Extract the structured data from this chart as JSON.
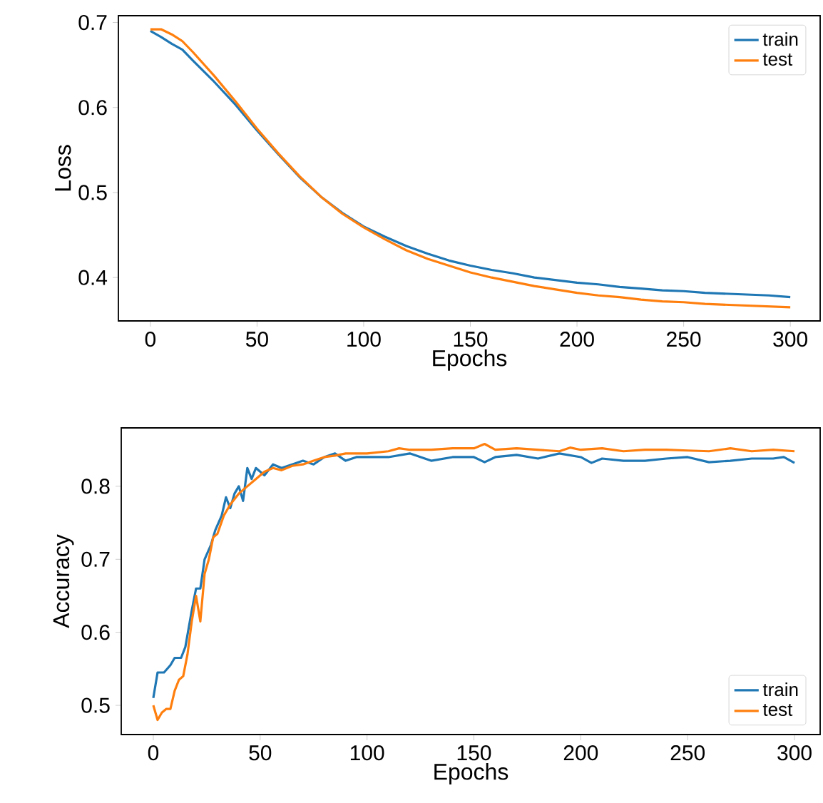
{
  "chart_data": [
    {
      "type": "line",
      "xlabel": "Epochs",
      "ylabel": "Loss",
      "xlim": [
        -15,
        314
      ],
      "ylim": [
        0.349,
        0.708
      ],
      "xticks": [
        0,
        50,
        100,
        150,
        200,
        250,
        300
      ],
      "yticks": [
        0.4,
        0.5,
        0.6,
        0.7
      ],
      "legend": "top right",
      "series": [
        {
          "name": "train",
          "color": "#1f77b4",
          "x": [
            0,
            5,
            10,
            15,
            20,
            30,
            40,
            50,
            60,
            70,
            80,
            90,
            100,
            110,
            120,
            130,
            140,
            150,
            160,
            170,
            180,
            190,
            200,
            210,
            220,
            230,
            240,
            250,
            260,
            270,
            280,
            290,
            300
          ],
          "values": [
            0.69,
            0.683,
            0.675,
            0.668,
            0.655,
            0.63,
            0.603,
            0.573,
            0.545,
            0.518,
            0.495,
            0.476,
            0.46,
            0.448,
            0.437,
            0.428,
            0.42,
            0.414,
            0.409,
            0.405,
            0.4,
            0.397,
            0.394,
            0.392,
            0.389,
            0.387,
            0.385,
            0.384,
            0.382,
            0.381,
            0.38,
            0.379,
            0.377
          ]
        },
        {
          "name": "test",
          "color": "#ff7f0e",
          "x": [
            0,
            5,
            10,
            15,
            20,
            30,
            40,
            50,
            60,
            70,
            80,
            90,
            100,
            110,
            120,
            130,
            140,
            150,
            160,
            170,
            180,
            190,
            200,
            210,
            220,
            230,
            240,
            250,
            260,
            270,
            280,
            290,
            300
          ],
          "values": [
            0.692,
            0.692,
            0.686,
            0.678,
            0.665,
            0.637,
            0.607,
            0.575,
            0.546,
            0.519,
            0.495,
            0.475,
            0.459,
            0.445,
            0.432,
            0.422,
            0.414,
            0.406,
            0.4,
            0.395,
            0.39,
            0.386,
            0.382,
            0.379,
            0.377,
            0.374,
            0.372,
            0.371,
            0.369,
            0.368,
            0.367,
            0.366,
            0.365
          ]
        }
      ]
    },
    {
      "type": "line",
      "xlabel": "Epochs",
      "ylabel": "Accuracy",
      "xlim": [
        -15,
        312
      ],
      "ylim": [
        0.46,
        0.88
      ],
      "xticks": [
        0,
        50,
        100,
        150,
        200,
        250,
        300
      ],
      "yticks": [
        0.5,
        0.6,
        0.7,
        0.8
      ],
      "legend": "bottom right",
      "series": [
        {
          "name": "train",
          "color": "#1f77b4",
          "x": [
            0,
            2,
            5,
            8,
            10,
            13,
            15,
            18,
            20,
            22,
            24,
            27,
            29,
            32,
            34,
            36,
            38,
            40,
            42,
            44,
            46,
            48,
            52,
            56,
            60,
            65,
            70,
            75,
            80,
            85,
            90,
            95,
            100,
            110,
            120,
            130,
            140,
            150,
            155,
            160,
            170,
            180,
            190,
            200,
            205,
            210,
            220,
            230,
            240,
            250,
            260,
            270,
            280,
            290,
            295,
            300
          ],
          "values": [
            0.51,
            0.545,
            0.545,
            0.555,
            0.565,
            0.565,
            0.58,
            0.63,
            0.66,
            0.66,
            0.7,
            0.72,
            0.74,
            0.76,
            0.785,
            0.77,
            0.79,
            0.8,
            0.78,
            0.825,
            0.81,
            0.825,
            0.815,
            0.83,
            0.825,
            0.83,
            0.835,
            0.83,
            0.84,
            0.845,
            0.835,
            0.84,
            0.84,
            0.84,
            0.845,
            0.835,
            0.84,
            0.84,
            0.833,
            0.84,
            0.843,
            0.838,
            0.845,
            0.84,
            0.832,
            0.838,
            0.835,
            0.835,
            0.838,
            0.84,
            0.833,
            0.835,
            0.838,
            0.838,
            0.84,
            0.832
          ]
        },
        {
          "name": "test",
          "color": "#ff7f0e",
          "x": [
            0,
            2,
            4,
            6,
            8,
            10,
            12,
            14,
            16,
            18,
            20,
            22,
            24,
            26,
            28,
            30,
            33,
            36,
            40,
            44,
            48,
            52,
            56,
            60,
            65,
            70,
            75,
            80,
            85,
            90,
            100,
            110,
            115,
            120,
            130,
            140,
            150,
            155,
            160,
            170,
            180,
            190,
            195,
            200,
            210,
            220,
            230,
            240,
            250,
            260,
            270,
            280,
            290,
            300
          ],
          "values": [
            0.5,
            0.48,
            0.49,
            0.495,
            0.495,
            0.52,
            0.535,
            0.54,
            0.57,
            0.615,
            0.65,
            0.615,
            0.68,
            0.7,
            0.73,
            0.735,
            0.76,
            0.775,
            0.79,
            0.8,
            0.81,
            0.82,
            0.825,
            0.822,
            0.828,
            0.83,
            0.835,
            0.84,
            0.842,
            0.845,
            0.845,
            0.848,
            0.852,
            0.85,
            0.85,
            0.852,
            0.852,
            0.858,
            0.85,
            0.852,
            0.85,
            0.848,
            0.853,
            0.85,
            0.852,
            0.848,
            0.85,
            0.85,
            0.849,
            0.848,
            0.852,
            0.848,
            0.85,
            0.848
          ]
        }
      ]
    }
  ]
}
